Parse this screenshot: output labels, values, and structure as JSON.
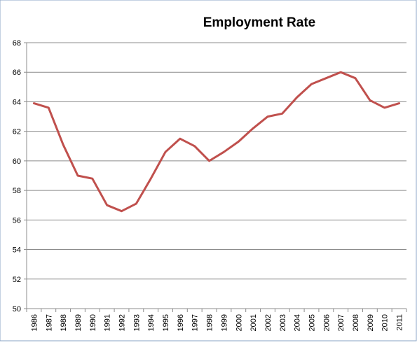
{
  "chart_data": {
    "type": "line",
    "title": "Employment Rate",
    "xlabel": "",
    "ylabel": "",
    "ylim": [
      50,
      68
    ],
    "yticks": [
      50,
      52,
      54,
      56,
      58,
      60,
      62,
      64,
      66,
      68
    ],
    "grid": true,
    "legend": "none",
    "x": [
      "1986",
      "1987",
      "1988",
      "1989",
      "1990",
      "1991",
      "1992",
      "1993",
      "1994",
      "1995",
      "1996",
      "1997",
      "1998",
      "1999",
      "2000",
      "2001",
      "2002",
      "2003",
      "2004",
      "2005",
      "2006",
      "2007",
      "2008",
      "2009",
      "2010",
      "2011"
    ],
    "series": [
      {
        "values": [
          63.9,
          63.6,
          61.1,
          59.0,
          58.8,
          57.0,
          56.6,
          57.1,
          58.8,
          60.6,
          61.5,
          61.0,
          60.0,
          60.6,
          61.3,
          62.2,
          63.0,
          63.2,
          64.3,
          65.2,
          65.6,
          66.0,
          65.6,
          64.1,
          63.6,
          63.9
        ],
        "color": "#C0504D"
      }
    ]
  }
}
